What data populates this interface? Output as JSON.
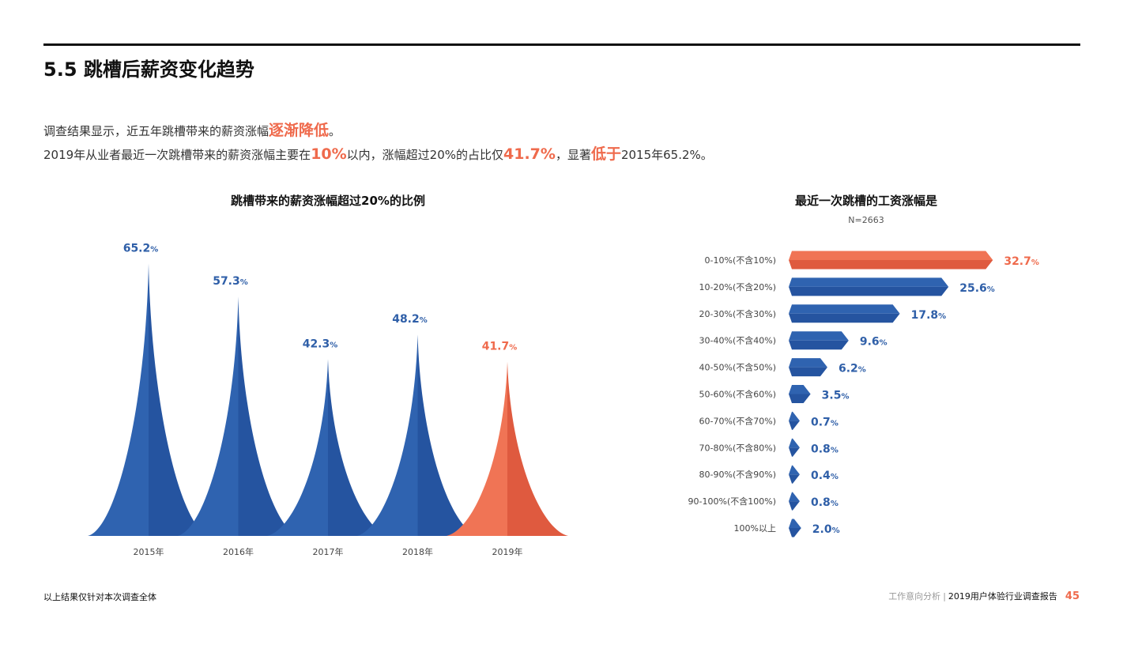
{
  "page": {
    "title": "5.5 跳槽后薪资变化趋势",
    "summary": {
      "line1": [
        {
          "text": "调查结果显示，近五年跳槽带来的薪资涨幅",
          "hl": false
        },
        {
          "text": "逐渐降低",
          "hl": true
        },
        {
          "text": "。",
          "hl": false
        }
      ],
      "line2": [
        {
          "text": "2019年从业者最近一次跳槽带来的薪资涨幅主要在",
          "hl": false
        },
        {
          "text": "10%",
          "hl": true
        },
        {
          "text": "以内，涨幅超过20%的占比仅",
          "hl": false
        },
        {
          "text": "41.7%",
          "hl": true
        },
        {
          "text": "，显著",
          "hl": false
        },
        {
          "text": "低于",
          "hl": true
        },
        {
          "text": "2015年65.2%。",
          "hl": false
        }
      ]
    },
    "footer": {
      "note": "以上结果仅针对本次调查全体",
      "section": "工作意向分析",
      "separator": "|",
      "report": "2019用户体验行业调查报告",
      "page_number": "45"
    }
  },
  "colors": {
    "blue": "#2f63b0",
    "blue_dark": "#2554a0",
    "orange": "#f07455",
    "orange_dark": "#df5a3f",
    "label_blue": "#2f5fa8",
    "label_orange": "#ef6a4c"
  },
  "chart_data": [
    {
      "type": "area",
      "title": "跳槽带来的薪资涨幅超过20%的比例",
      "categories": [
        "2015年",
        "2016年",
        "2017年",
        "2018年",
        "2019年"
      ],
      "values": [
        65.2,
        57.3,
        42.3,
        48.2,
        41.7
      ],
      "value_labels": [
        "65.2",
        "57.3",
        "42.3",
        "48.2",
        "41.7"
      ],
      "unit": "%",
      "highlight_index": 4,
      "ylim": [
        0,
        70
      ],
      "grid": false
    },
    {
      "type": "bar",
      "orientation": "horizontal",
      "title": "最近一次跳槽的工资涨幅是",
      "subtitle": "N=2663",
      "categories": [
        "0-10%(不含10%)",
        "10-20%(不含20%)",
        "20-30%(不含30%)",
        "30-40%(不含40%)",
        "40-50%(不含50%)",
        "50-60%(不含60%)",
        "60-70%(不含70%)",
        "70-80%(不含80%)",
        "80-90%(不含90%)",
        "90-100%(不含100%)",
        "100%以上"
      ],
      "values": [
        32.7,
        25.6,
        17.8,
        9.6,
        6.2,
        3.5,
        0.7,
        0.8,
        0.4,
        0.8,
        2.0
      ],
      "value_labels": [
        "32.7",
        "25.6",
        "17.8",
        "9.6",
        "6.2",
        "3.5",
        "0.7",
        "0.8",
        "0.4",
        "0.8",
        "2.0"
      ],
      "unit": "%",
      "highlight_index": 0,
      "grid": false
    }
  ]
}
